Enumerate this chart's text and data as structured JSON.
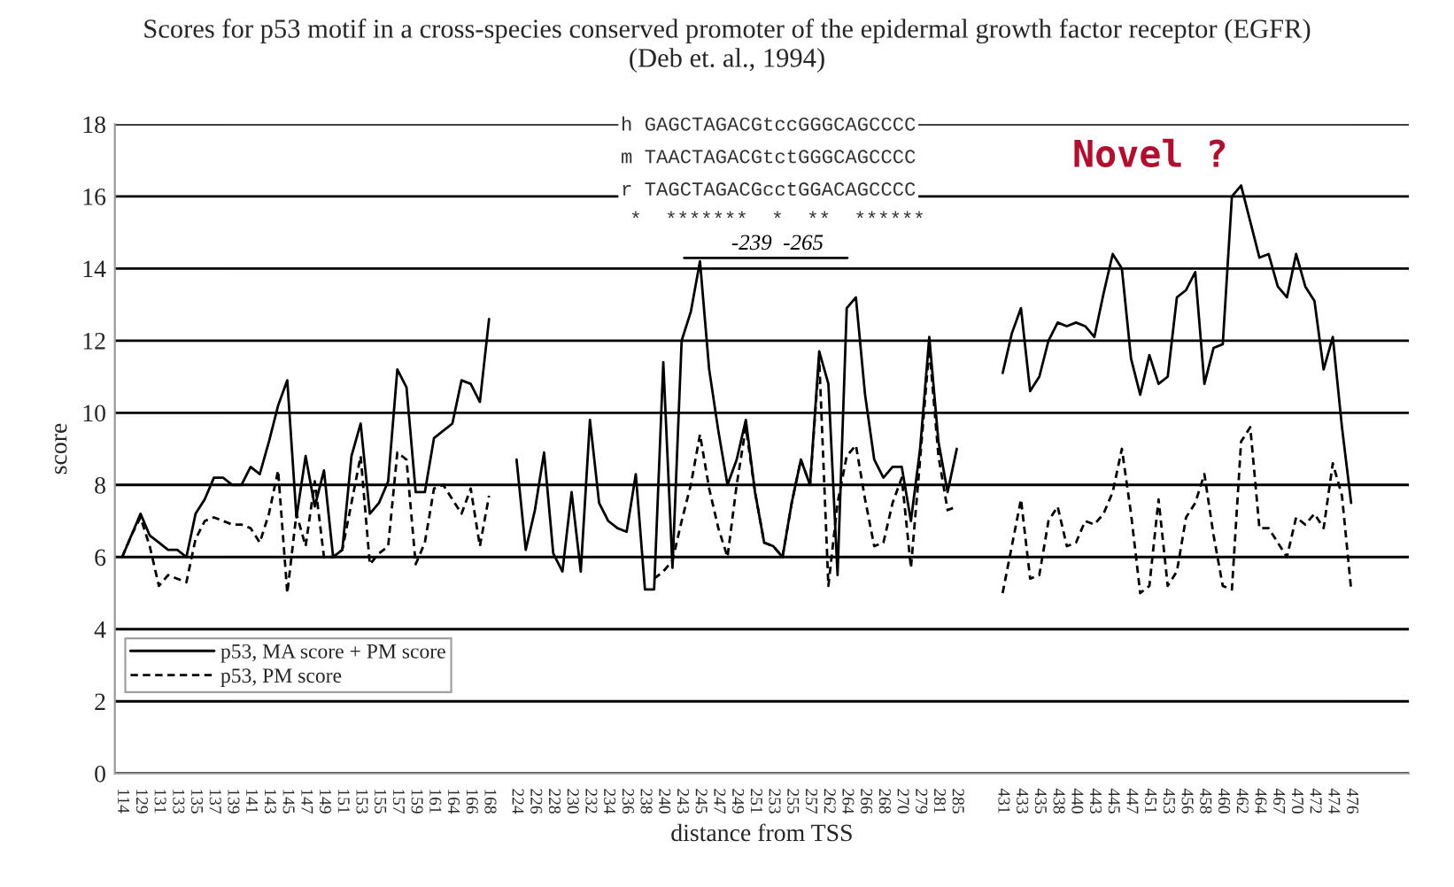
{
  "chart_data": {
    "type": "line",
    "title": "Scores for p53 motif in a cross-species conserved promoter of the epidermal growth factor receptor (EGFR)",
    "subtitle": "(Deb et. al., 1994)",
    "xlabel": "distance from TSS",
    "ylabel": "score",
    "annotations": [
      "h GAGCTAGACGtccGGGCAGCCCC",
      "m TAACTAGACGtctGGGCAGCCCC",
      "r TAGCTAGACGcctGGACAGCCCC",
      "*  *******  *  **  ******",
      "-239  -265",
      "Novel ?"
    ],
    "categories": [
      "114",
      null,
      "129",
      null,
      "131",
      null,
      "133",
      null,
      "135",
      null,
      "137",
      null,
      "139",
      null,
      "141",
      null,
      "143",
      null,
      "145",
      null,
      "147",
      null,
      "149",
      null,
      "151",
      null,
      "153",
      null,
      "155",
      null,
      "157",
      null,
      "159",
      null,
      "161",
      null,
      "164",
      null,
      "166",
      null,
      "168",
      null,
      null,
      "224",
      null,
      "226",
      null,
      "228",
      null,
      "230",
      null,
      "232",
      null,
      "234",
      null,
      "236",
      null,
      "238",
      null,
      "240",
      null,
      "243",
      null,
      "245",
      null,
      "247",
      null,
      "249",
      null,
      "251",
      null,
      "253",
      null,
      "255",
      null,
      "257",
      null,
      "262",
      null,
      "264",
      null,
      "266",
      null,
      "268",
      null,
      "270",
      null,
      "279",
      null,
      "281",
      null,
      "285",
      null,
      null,
      null,
      null,
      "431",
      null,
      "433",
      null,
      "435",
      null,
      "438",
      null,
      "440",
      null,
      "443",
      null,
      "445",
      null,
      "447",
      null,
      "451",
      null,
      "453",
      null,
      "456",
      null,
      "458",
      null,
      "460",
      null,
      "462",
      null,
      "464",
      null,
      "467",
      null,
      "470",
      null,
      "472",
      null,
      "474",
      null,
      "476"
    ],
    "series": [
      {
        "name": "p53, MA score + PM score",
        "color": "#000000",
        "line_style": "solid",
        "values": [
          6.0,
          6.6,
          7.2,
          6.6,
          6.4,
          6.2,
          6.2,
          6.0,
          7.2,
          7.6,
          8.2,
          8.2,
          8.0,
          8.0,
          8.5,
          8.3,
          9.2,
          10.2,
          10.9,
          7.1,
          8.8,
          7.4,
          8.4,
          6.0,
          6.2,
          8.8,
          9.7,
          7.2,
          7.5,
          8.1,
          11.2,
          10.7,
          7.8,
          7.8,
          9.3,
          9.5,
          9.7,
          10.9,
          10.8,
          10.3,
          12.6,
          null,
          null,
          8.7,
          6.2,
          7.3,
          8.9,
          6.1,
          5.6,
          7.8,
          5.6,
          9.8,
          7.5,
          7.0,
          6.8,
          6.7,
          8.3,
          5.1,
          5.1,
          11.4,
          5.7,
          12.0,
          12.8,
          14.2,
          11.2,
          9.5,
          8.0,
          8.7,
          9.8,
          7.8,
          6.4,
          6.3,
          6.0,
          7.5,
          8.7,
          8.0,
          11.7,
          10.8,
          5.5,
          12.9,
          13.2,
          10.5,
          8.7,
          8.2,
          8.5,
          8.5,
          7.0,
          9.0,
          12.1,
          9.2,
          7.8,
          9.0,
          null,
          null,
          null,
          null,
          11.1,
          12.2,
          12.9,
          10.6,
          11.0,
          12.0,
          12.5,
          12.4,
          12.5,
          12.4,
          12.1,
          13.3,
          14.4,
          14.0,
          11.5,
          10.5,
          11.6,
          10.8,
          11.0,
          13.2,
          13.4,
          13.9,
          10.8,
          11.8,
          11.9,
          16.0,
          16.3,
          15.3,
          14.3,
          14.4,
          13.5,
          13.2,
          14.4,
          13.5,
          13.1,
          11.2,
          12.1,
          9.6,
          7.5
        ]
      },
      {
        "name": "p53, PM score",
        "color": "#000000",
        "line_style": "dashed",
        "values": [
          6.0,
          6.6,
          7.1,
          6.3,
          5.2,
          5.5,
          5.4,
          5.3,
          6.5,
          7.0,
          7.1,
          7.0,
          6.9,
          6.9,
          6.8,
          6.4,
          7.2,
          8.4,
          5.0,
          7.2,
          6.3,
          8.1,
          6.0,
          6.0,
          6.2,
          7.5,
          8.8,
          5.8,
          6.1,
          6.3,
          8.9,
          8.7,
          5.8,
          6.4,
          7.9,
          8.0,
          7.6,
          7.2,
          7.9,
          6.3,
          7.7,
          null,
          null,
          null,
          null,
          null,
          null,
          null,
          null,
          null,
          null,
          null,
          null,
          null,
          null,
          null,
          null,
          null,
          5.4,
          5.6,
          5.9,
          7.0,
          8.0,
          9.4,
          7.9,
          6.8,
          6.0,
          8.0,
          9.6,
          7.8,
          6.4,
          6.3,
          6.0,
          7.5,
          8.7,
          8.0,
          11.5,
          5.2,
          7.5,
          8.8,
          9.1,
          7.6,
          6.3,
          6.4,
          7.5,
          8.2,
          5.7,
          8.7,
          11.8,
          8.8,
          7.3,
          7.4,
          null,
          null,
          null,
          null,
          5.0,
          6.3,
          7.6,
          5.4,
          5.5,
          7.0,
          7.4,
          6.3,
          6.4,
          7.0,
          6.9,
          7.2,
          7.8,
          9.0,
          7.2,
          5.0,
          5.2,
          7.6,
          5.2,
          5.6,
          7.1,
          7.5,
          8.3,
          6.6,
          5.2,
          5.1,
          9.2,
          9.6,
          6.8,
          6.8,
          6.4,
          6.0,
          7.1,
          6.9,
          7.2,
          6.8,
          8.6,
          7.7,
          5.1
        ]
      }
    ],
    "ylim": [
      0,
      18
    ],
    "yticks": [
      0,
      2,
      4,
      6,
      8,
      10,
      12,
      14,
      16,
      18
    ],
    "grid": "y",
    "legend": "left"
  }
}
